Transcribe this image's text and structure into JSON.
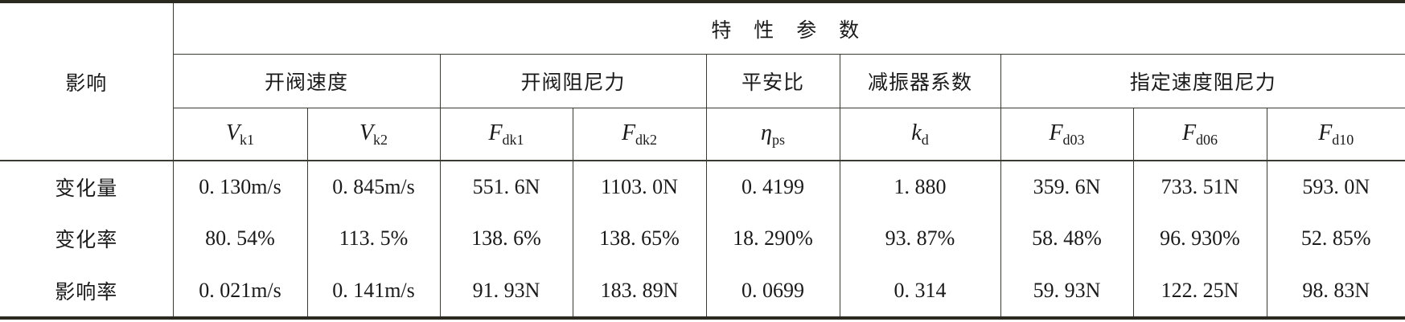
{
  "header": {
    "row_label": "影响",
    "group_title": "特 性 参 数",
    "groups": [
      "开阀速度",
      "开阀阻尼力",
      "平安比",
      "减振器系数",
      "指定速度阻尼力"
    ],
    "symbols": [
      {
        "main": "V",
        "sub": "k1"
      },
      {
        "main": "V",
        "sub": "k2"
      },
      {
        "main": "F",
        "sub": "dk1"
      },
      {
        "main": "F",
        "sub": "dk2"
      },
      {
        "main": "η",
        "sub": "ps"
      },
      {
        "main": "k",
        "sub": "d"
      },
      {
        "main": "F",
        "sub": "d03"
      },
      {
        "main": "F",
        "sub": "d06"
      },
      {
        "main": "F",
        "sub": "d10"
      }
    ]
  },
  "rows": [
    {
      "label": "变化量",
      "values": [
        "0. 130m/s",
        "0. 845m/s",
        "551. 6N",
        "1103. 0N",
        "0. 4199",
        "1. 880",
        "359. 6N",
        "733. 51N",
        "593. 0N"
      ]
    },
    {
      "label": "变化率",
      "values": [
        "80. 54%",
        "113. 5%",
        "138. 6%",
        "138. 65%",
        "18. 290%",
        "93. 87%",
        "58. 48%",
        "96. 930%",
        "52. 85%"
      ]
    },
    {
      "label": "影响率",
      "values": [
        "0. 021m/s",
        "0. 141m/s",
        "91. 93N",
        "183. 89N",
        "0. 0699",
        "0. 314",
        "59. 93N",
        "122. 25N",
        "98. 83N"
      ]
    }
  ]
}
